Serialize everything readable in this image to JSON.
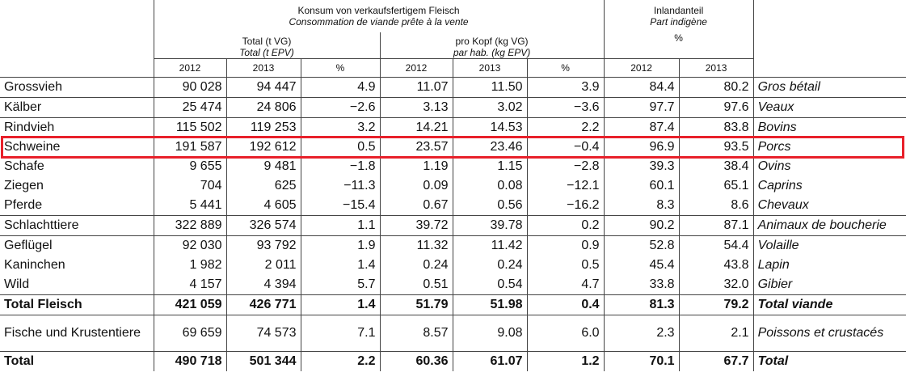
{
  "header": {
    "consumption": {
      "de": "Konsum von verkaufsfertigem Fleisch",
      "fr": "Consommation de viande prête à la vente"
    },
    "domestic": {
      "de": "Inlandanteil",
      "fr": "Part indigène",
      "unit": "%"
    },
    "total": {
      "de": "Total (t VG)",
      "fr": "Total (t EPV)"
    },
    "per_capita": {
      "de": "pro Kopf (kg VG)",
      "fr": "par hab. (kg EPV)"
    },
    "columns": [
      "2012",
      "2013",
      "%",
      "2012",
      "2013",
      "%",
      "2012",
      "2013"
    ]
  },
  "table": {
    "rows": [
      [
        "Grossvieh",
        "90 028",
        "94 447",
        "4.9",
        "11.07",
        "11.50",
        "3.9",
        "84.4",
        "80.2",
        "Gros bétail"
      ],
      [
        "Kälber",
        "25 474",
        "24 806",
        "−2.6",
        "3.13",
        "3.02",
        "−3.6",
        "97.7",
        "97.6",
        "Veaux"
      ],
      [
        "Rindvieh",
        "115 502",
        "119 253",
        "3.2",
        "14.21",
        "14.53",
        "2.2",
        "87.4",
        "83.8",
        "Bovins"
      ],
      [
        "Schweine",
        "191 587",
        "192 612",
        "0.5",
        "23.57",
        "23.46",
        "−0.4",
        "96.9",
        "93.5",
        "Porcs"
      ],
      [
        "Schafe",
        "9 655",
        "9 481",
        "−1.8",
        "1.19",
        "1.15",
        "−2.8",
        "39.3",
        "38.4",
        "Ovins"
      ],
      [
        "Ziegen",
        "704",
        "625",
        "−11.3",
        "0.09",
        "0.08",
        "−12.1",
        "60.1",
        "65.1",
        "Caprins"
      ],
      [
        "Pferde",
        "5 441",
        "4 605",
        "−15.4",
        "0.67",
        "0.56",
        "−16.2",
        "8.3",
        "8.6",
        "Chevaux"
      ],
      [
        "Schlachttiere",
        "322 889",
        "326 574",
        "1.1",
        "39.72",
        "39.78",
        "0.2",
        "90.2",
        "87.1",
        "Animaux de boucherie"
      ],
      [
        "Geflügel",
        "92 030",
        "93 792",
        "1.9",
        "11.32",
        "11.42",
        "0.9",
        "52.8",
        "54.4",
        "Volaille"
      ],
      [
        "Kaninchen",
        "1 982",
        "2 011",
        "1.4",
        "0.24",
        "0.24",
        "0.5",
        "45.4",
        "43.8",
        "Lapin"
      ],
      [
        "Wild",
        "4 157",
        "4 394",
        "5.7",
        "0.51",
        "0.54",
        "4.7",
        "33.8",
        "32.0",
        "Gibier"
      ],
      [
        "Total Fleisch",
        "421 059",
        "426 771",
        "1.4",
        "51.79",
        "51.98",
        "0.4",
        "81.3",
        "79.2",
        "Total viande"
      ],
      [
        "Fische und Krustentiere",
        "69 659",
        "74 573",
        "7.1",
        "8.57",
        "9.08",
        "6.0",
        "2.3",
        "2.1",
        "Poissons et crustacés"
      ],
      [
        "Total",
        "490 718",
        "501 344",
        "2.2",
        "60.36",
        "61.07",
        "1.2",
        "70.1",
        "67.7",
        "Total"
      ]
    ]
  }
}
